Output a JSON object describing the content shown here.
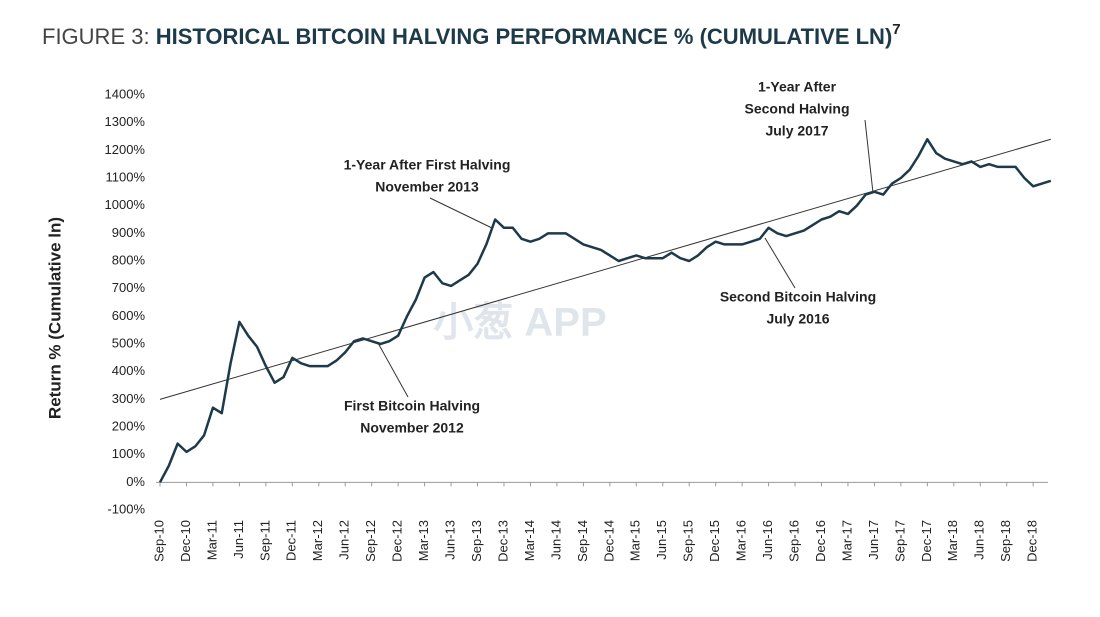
{
  "chart_data": {
    "type": "line",
    "title_prefix": "FIGURE 3: ",
    "title": "HISTORICAL BITCOIN HALVING PERFORMANCE % (CUMULATIVE LN)",
    "title_footnote": "7",
    "y_label": "Return % (Cumulative ln)",
    "watermark": "小葱 APP",
    "ylim": [
      -100,
      1400
    ],
    "yticks": [
      {
        "value": -100,
        "label": "-100%"
      },
      {
        "value": 0,
        "label": "0%"
      },
      {
        "value": 100,
        "label": "100%"
      },
      {
        "value": 200,
        "label": "200%"
      },
      {
        "value": 300,
        "label": "300%"
      },
      {
        "value": 400,
        "label": "400%"
      },
      {
        "value": 500,
        "label": "500%"
      },
      {
        "value": 600,
        "label": "600%"
      },
      {
        "value": 700,
        "label": "700%"
      },
      {
        "value": 800,
        "label": "800%"
      },
      {
        "value": 900,
        "label": "900%"
      },
      {
        "value": 1000,
        "label": "1000%"
      },
      {
        "value": 1100,
        "label": "1100%"
      },
      {
        "value": 1200,
        "label": "1200%"
      },
      {
        "value": 1300,
        "label": "1300%"
      },
      {
        "value": 1400,
        "label": "1400%"
      }
    ],
    "xticks": [
      "Sep-10",
      "Dec-10",
      "Mar-11",
      "Jun-11",
      "Sep-11",
      "Dec-11",
      "Mar-12",
      "Jun-12",
      "Sep-12",
      "Dec-12",
      "Mar-13",
      "Jun-13",
      "Sep-13",
      "Dec-13",
      "Mar-14",
      "Jun-14",
      "Sep-14",
      "Dec-14",
      "Mar-15",
      "Jun-15",
      "Sep-15",
      "Dec-15",
      "Mar-16",
      "Jun-16",
      "Sep-16",
      "Dec-16",
      "Mar-17",
      "Jun-17",
      "Sep-17",
      "Dec-17",
      "Mar-18",
      "Jun-18",
      "Sep-18",
      "Dec-18"
    ],
    "x": [
      "Sep-10",
      "Oct-10",
      "Nov-10",
      "Dec-10",
      "Jan-11",
      "Feb-11",
      "Mar-11",
      "Apr-11",
      "May-11",
      "Jun-11",
      "Jul-11",
      "Aug-11",
      "Sep-11",
      "Oct-11",
      "Nov-11",
      "Dec-11",
      "Jan-12",
      "Feb-12",
      "Mar-12",
      "Apr-12",
      "May-12",
      "Jun-12",
      "Jul-12",
      "Aug-12",
      "Sep-12",
      "Oct-12",
      "Nov-12",
      "Dec-12",
      "Jan-13",
      "Feb-13",
      "Mar-13",
      "Apr-13",
      "May-13",
      "Jun-13",
      "Jul-13",
      "Aug-13",
      "Sep-13",
      "Oct-13",
      "Nov-13",
      "Dec-13",
      "Jan-14",
      "Feb-14",
      "Mar-14",
      "Apr-14",
      "May-14",
      "Jun-14",
      "Jul-14",
      "Aug-14",
      "Sep-14",
      "Oct-14",
      "Nov-14",
      "Dec-14",
      "Jan-15",
      "Feb-15",
      "Mar-15",
      "Apr-15",
      "May-15",
      "Jun-15",
      "Jul-15",
      "Aug-15",
      "Sep-15",
      "Oct-15",
      "Nov-15",
      "Dec-15",
      "Jan-16",
      "Feb-16",
      "Mar-16",
      "Apr-16",
      "May-16",
      "Jun-16",
      "Jul-16",
      "Aug-16",
      "Sep-16",
      "Oct-16",
      "Nov-16",
      "Dec-16",
      "Jan-17",
      "Feb-17",
      "Mar-17",
      "Apr-17",
      "May-17",
      "Jun-17",
      "Jul-17",
      "Aug-17",
      "Sep-17",
      "Oct-17",
      "Nov-17",
      "Dec-17",
      "Jan-18",
      "Feb-18",
      "Mar-18",
      "Apr-18",
      "May-18",
      "Jun-18",
      "Jul-18",
      "Aug-18",
      "Sep-18",
      "Oct-18",
      "Nov-18",
      "Dec-18",
      "Jan-19",
      "Feb-19"
    ],
    "series": [
      {
        "color": "#1d3a4a",
        "values": [
          0,
          60,
          140,
          110,
          130,
          170,
          270,
          250,
          430,
          580,
          530,
          490,
          420,
          360,
          380,
          450,
          430,
          420,
          420,
          420,
          440,
          470,
          510,
          520,
          510,
          500,
          510,
          530,
          600,
          660,
          740,
          760,
          720,
          710,
          730,
          750,
          790,
          860,
          950,
          920,
          920,
          880,
          870,
          880,
          900,
          900,
          900,
          880,
          860,
          850,
          840,
          820,
          800,
          810,
          820,
          810,
          810,
          810,
          830,
          810,
          800,
          820,
          850,
          870,
          860,
          860,
          860,
          870,
          880,
          920,
          900,
          890,
          900,
          910,
          930,
          950,
          960,
          980,
          970,
          1000,
          1040,
          1050,
          1040,
          1080,
          1100,
          1130,
          1180,
          1240,
          1190,
          1170,
          1160,
          1150,
          1160,
          1140,
          1150,
          1140,
          1140,
          1140,
          1100,
          1070,
          1080,
          1090
        ]
      }
    ],
    "trendline": {
      "color": "#333333",
      "x": [
        "Sep-10",
        "Feb-19"
      ],
      "values": [
        300,
        1240
      ]
    },
    "annotations": [
      {
        "text": [
          "1-Year After First Halving",
          "November 2013"
        ]
      },
      {
        "text": [
          "First Bitcoin Halving",
          "November 2012"
        ]
      },
      {
        "text": [
          "Second Bitcoin Halving",
          "July 2016"
        ]
      },
      {
        "text": [
          "1-Year After",
          "Second Halving",
          "July 2017"
        ]
      }
    ]
  }
}
